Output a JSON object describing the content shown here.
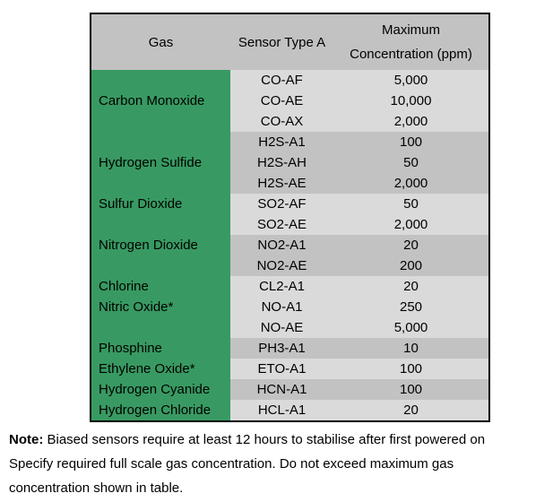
{
  "table": {
    "headers": {
      "gas": "Gas",
      "sensor": "Sensor Type A",
      "max_line1": "Maximum",
      "max_line2": "Concentration (ppm)"
    },
    "colors": {
      "gas_column_green": "#389a62",
      "band_light": "#dadada",
      "band_dark": "#c2c2c2",
      "header_gray": "#c2c2c2",
      "border": "#000000"
    },
    "rows": [
      {
        "gas": "",
        "sensor": "CO-AF",
        "ppm": "5,000",
        "band": "light"
      },
      {
        "gas": "Carbon Monoxide",
        "sensor": "CO-AE",
        "ppm": "10,000",
        "band": "light"
      },
      {
        "gas": "",
        "sensor": "CO-AX",
        "ppm": "2,000",
        "band": "light"
      },
      {
        "gas": "",
        "sensor": "H2S-A1",
        "ppm": "100",
        "band": "dark"
      },
      {
        "gas": "Hydrogen Sulfide",
        "sensor": "H2S-AH",
        "ppm": "50",
        "band": "dark"
      },
      {
        "gas": "",
        "sensor": "H2S-AE",
        "ppm": "2,000",
        "band": "dark"
      },
      {
        "gas": "Sulfur Dioxide",
        "sensor": "SO2-AF",
        "ppm": "50",
        "band": "light"
      },
      {
        "gas": "",
        "sensor": "SO2-AE",
        "ppm": "2,000",
        "band": "light"
      },
      {
        "gas": "Nitrogen Dioxide",
        "sensor": "NO2-A1",
        "ppm": "20",
        "band": "dark"
      },
      {
        "gas": "",
        "sensor": "NO2-AE",
        "ppm": "200",
        "band": "dark"
      },
      {
        "gas": "Chlorine",
        "sensor": "CL2-A1",
        "ppm": "20",
        "band": "light"
      },
      {
        "gas": "Nitric Oxide*",
        "sensor": "NO-A1",
        "ppm": "250",
        "band": "light"
      },
      {
        "gas": "",
        "sensor": "NO-AE",
        "ppm": "5,000",
        "band": "light"
      },
      {
        "gas": "Phosphine",
        "sensor": "PH3-A1",
        "ppm": "10",
        "band": "dark"
      },
      {
        "gas": "Ethylene Oxide*",
        "sensor": "ETO-A1",
        "ppm": "100",
        "band": "light"
      },
      {
        "gas": "Hydrogen Cyanide",
        "sensor": "HCN-A1",
        "ppm": "100",
        "band": "dark"
      },
      {
        "gas": "Hydrogen Chloride",
        "sensor": "HCL-A1",
        "ppm": "20",
        "band": "light"
      }
    ]
  },
  "note": {
    "label": "Note:",
    "lines": [
      " Biased sensors require at least 12 hours to stabilise after first powered on",
      "Specify required full scale gas concentration. Do not exceed maximum gas",
      "concentration shown in table."
    ]
  }
}
